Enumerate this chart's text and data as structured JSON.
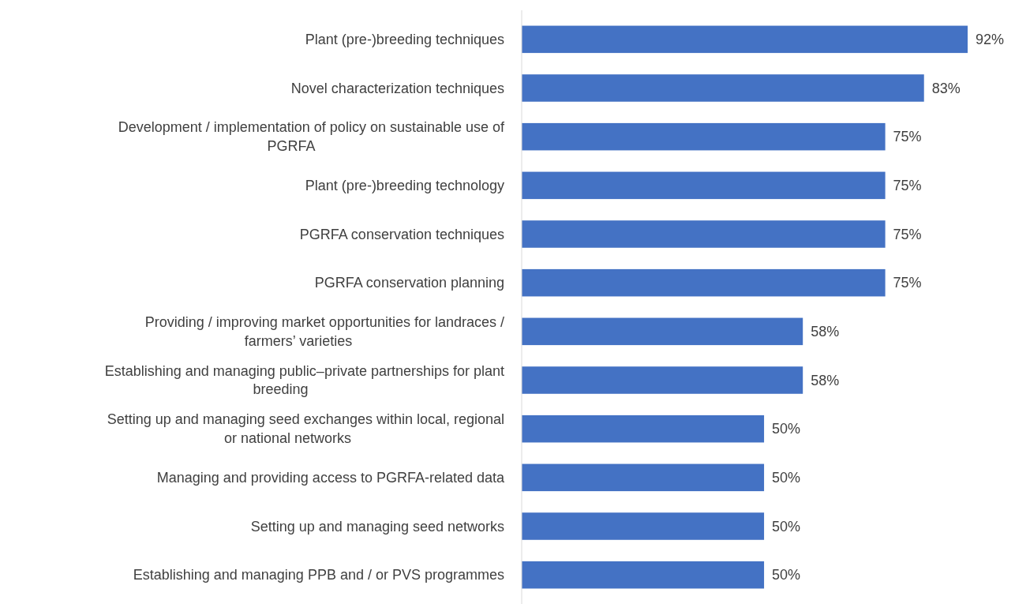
{
  "chart_data": {
    "type": "bar",
    "orientation": "horizontal",
    "categories": [
      "Plant (pre-)breeding techniques",
      "Novel characterization techniques",
      "Development / implementation of policy on sustainable use of PGRFA",
      "Plant (pre-)breeding technology",
      "PGRFA conservation techniques",
      "PGRFA conservation planning",
      "Providing / improving market opportunities for landraces / farmers’ varieties",
      "Establishing and managing public–private partnerships for plant breeding",
      "Setting up and managing seed exchanges within local, regional or national networks",
      "Managing and providing access to PGRFA-related data",
      "Setting up and managing seed networks",
      "Establishing and managing PPB and / or PVS programmes"
    ],
    "values": [
      92,
      83,
      75,
      75,
      75,
      75,
      58,
      58,
      50,
      50,
      50,
      50
    ],
    "value_labels": [
      "92%",
      "83%",
      "75%",
      "75%",
      "75%",
      "75%",
      "58%",
      "58%",
      "50%",
      "50%",
      "50%",
      "50%"
    ],
    "color": "#4472c4"
  }
}
